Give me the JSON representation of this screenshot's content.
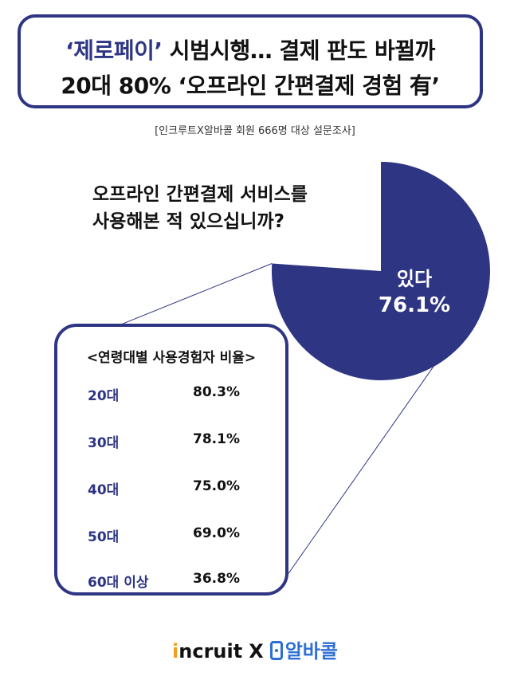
{
  "header": {
    "line1_accent": "‘제로페이’",
    "line1_rest": " 시범시행… 결제 판도 바뀔까",
    "line2": "20대 80% ‘오프라인 간편결제 경험 有’"
  },
  "source": "[인크루트X알바콜 회원 666명 대상 설문조사]",
  "question": {
    "line1": "오프라인 간편결제 서비스를",
    "line2": "사용해본 적 있으십니까?"
  },
  "colors": {
    "accent": "#2e3583",
    "pie_fill": "#2e3583"
  },
  "chart_data": [
    {
      "type": "pie",
      "title": "오프라인 간편결제 서비스를 사용해본 적 있으십니까?",
      "slices": [
        {
          "label": "있다",
          "value": 76.1,
          "display": "76.1%",
          "exploded": true
        },
        {
          "label": "",
          "value": 23.9,
          "display": ""
        }
      ]
    },
    {
      "type": "table",
      "title": "<연령대별 사용경험자 비율>",
      "rows": [
        {
          "category": "20대",
          "value": 80.3,
          "display": "80.3%"
        },
        {
          "category": "30대",
          "value": 78.1,
          "display": "78.1%"
        },
        {
          "category": "40대",
          "value": 75.0,
          "display": "75.0%"
        },
        {
          "category": "50대",
          "value": 69.0,
          "display": "69.0%"
        },
        {
          "category": "60대 이상",
          "value": 36.8,
          "display": "36.8%"
        }
      ]
    }
  ],
  "logos": {
    "incruit_i": "i",
    "incruit_rest": "ncruit",
    "separator": "X",
    "albamon": "알바콜"
  }
}
